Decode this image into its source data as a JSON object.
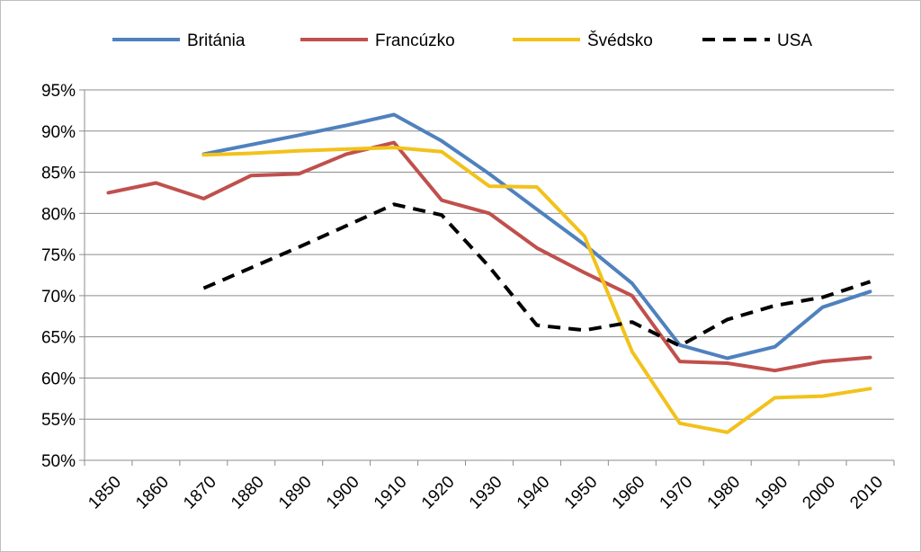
{
  "chart_data": {
    "type": "line",
    "title": "",
    "xlabel": "",
    "ylabel": "",
    "x": [
      1850,
      1860,
      1870,
      1880,
      1890,
      1900,
      1910,
      1920,
      1930,
      1940,
      1950,
      1960,
      1970,
      1980,
      1990,
      2000,
      2010
    ],
    "ylim": [
      50,
      95
    ],
    "y_tick_labels": [
      "50%",
      "55%",
      "60%",
      "65%",
      "70%",
      "75%",
      "80%",
      "85%",
      "90%",
      "95%"
    ],
    "grid": "horizontal",
    "legend_position": "top",
    "series": [
      {
        "name": "Británia",
        "color": "#4f81bd",
        "style": "solid",
        "points": [
          [
            1870,
            87.2
          ],
          [
            1890,
            89.5
          ],
          [
            1900,
            90.7
          ],
          [
            1910,
            92.0
          ],
          [
            1920,
            88.8
          ],
          [
            1930,
            84.8
          ],
          [
            1940,
            80.5
          ],
          [
            1950,
            76.2
          ],
          [
            1960,
            71.5
          ],
          [
            1970,
            64.0
          ],
          [
            1980,
            62.4
          ],
          [
            1990,
            63.8
          ],
          [
            2000,
            68.6
          ],
          [
            2010,
            70.5
          ]
        ]
      },
      {
        "name": "Francúzko",
        "color": "#c0504d",
        "style": "solid",
        "points": [
          [
            1850,
            82.5
          ],
          [
            1860,
            83.7
          ],
          [
            1870,
            81.8
          ],
          [
            1880,
            84.6
          ],
          [
            1890,
            84.8
          ],
          [
            1900,
            87.2
          ],
          [
            1910,
            88.6
          ],
          [
            1920,
            81.6
          ],
          [
            1930,
            80.0
          ],
          [
            1940,
            75.8
          ],
          [
            1950,
            72.8
          ],
          [
            1960,
            70.0
          ],
          [
            1970,
            62.0
          ],
          [
            1980,
            61.8
          ],
          [
            1990,
            60.9
          ],
          [
            2000,
            62.0
          ],
          [
            2010,
            62.5
          ]
        ]
      },
      {
        "name": "Švédsko",
        "color": "#f2c21b",
        "style": "solid",
        "points": [
          [
            1870,
            87.1
          ],
          [
            1880,
            87.3
          ],
          [
            1890,
            87.6
          ],
          [
            1900,
            87.8
          ],
          [
            1910,
            88.0
          ],
          [
            1920,
            87.5
          ],
          [
            1930,
            83.3
          ],
          [
            1940,
            83.2
          ],
          [
            1950,
            77.2
          ],
          [
            1960,
            63.2
          ],
          [
            1970,
            54.5
          ],
          [
            1980,
            53.4
          ],
          [
            1990,
            57.6
          ],
          [
            2000,
            57.8
          ],
          [
            2010,
            58.7
          ]
        ]
      },
      {
        "name": "USA",
        "color": "#000000",
        "style": "dashed",
        "points": [
          [
            1870,
            70.9
          ],
          [
            1880,
            73.4
          ],
          [
            1890,
            75.9
          ],
          [
            1900,
            78.5
          ],
          [
            1910,
            81.1
          ],
          [
            1920,
            79.8
          ],
          [
            1930,
            73.5
          ],
          [
            1940,
            66.4
          ],
          [
            1950,
            65.8
          ],
          [
            1960,
            66.8
          ],
          [
            1970,
            63.9
          ],
          [
            1980,
            67.1
          ],
          [
            1990,
            68.8
          ],
          [
            2000,
            69.8
          ],
          [
            2010,
            71.7
          ]
        ]
      }
    ]
  }
}
